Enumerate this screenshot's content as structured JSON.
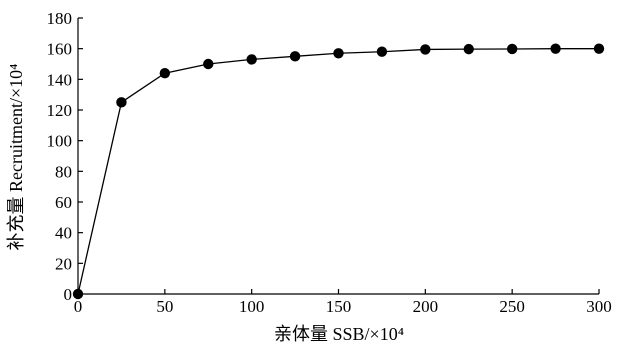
{
  "chart_data": {
    "type": "line",
    "xlabel": "亲体量 SSB/×10⁴",
    "ylabel": "补充量 Recruitment/×10⁴",
    "xlim": [
      0,
      300
    ],
    "ylim": [
      0,
      180
    ],
    "xticks": [
      0,
      50,
      100,
      150,
      200,
      250,
      300
    ],
    "yticks": [
      0,
      20,
      40,
      60,
      80,
      100,
      120,
      140,
      160,
      180
    ],
    "grid": false,
    "series": [
      {
        "x": [
          0,
          25,
          50,
          75,
          100,
          125,
          150,
          175,
          200,
          225,
          250,
          275,
          300
        ],
        "y": [
          0,
          125,
          144,
          150,
          153,
          155,
          157,
          158,
          159.5,
          159.7,
          159.8,
          160,
          160
        ]
      }
    ],
    "line_color": "#000000",
    "marker_color": "#000000"
  }
}
